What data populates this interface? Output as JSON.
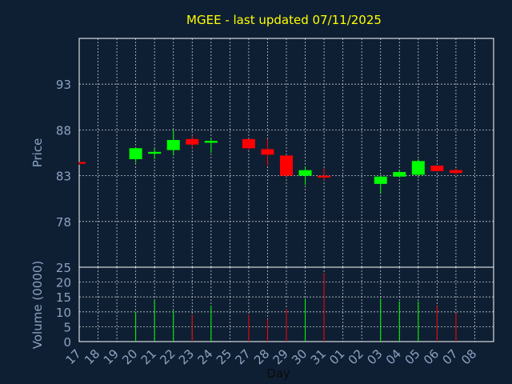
{
  "chart_data": {
    "type": "candlestick",
    "title": "MGEE - last updated 07/11/2025",
    "xlabel": "Day",
    "price_label": "Price",
    "volume_label": "Volume (0000)",
    "categories": [
      "17",
      "18",
      "19",
      "20",
      "21",
      "22",
      "23",
      "24",
      "25",
      "27",
      "28",
      "29",
      "30",
      "31",
      "01",
      "02",
      "03",
      "04",
      "05",
      "06",
      "07",
      "08"
    ],
    "price_ticks": [
      78,
      83,
      88,
      93
    ],
    "price_range": [
      73,
      98
    ],
    "volume_ticks": [
      0,
      5,
      10,
      15,
      20,
      25
    ],
    "volume_range": [
      0,
      25
    ],
    "grid": true,
    "colors": {
      "up": "#00ff00",
      "down": "#ff0000",
      "title": "#ffff00",
      "axis": "#8aa2c2",
      "background": "#0f1f33"
    },
    "candles": [
      {
        "day": "17",
        "open": 84.5,
        "high": 84.5,
        "low": 84.2,
        "close": 84.3,
        "volume": null
      },
      {
        "day": "20",
        "open": 84.8,
        "high": 86.1,
        "low": 84.4,
        "close": 86.0,
        "volume": 10
      },
      {
        "day": "21",
        "open": 85.4,
        "high": 86.0,
        "low": 84.8,
        "close": 85.6,
        "volume": 14
      },
      {
        "day": "22",
        "open": 85.8,
        "high": 88.0,
        "low": 85.2,
        "close": 86.9,
        "volume": 10.5
      },
      {
        "day": "23",
        "open": 87.0,
        "high": 87.4,
        "low": 86.0,
        "close": 86.4,
        "volume": 9
      },
      {
        "day": "24",
        "open": 86.6,
        "high": 87.1,
        "low": 85.5,
        "close": 86.8,
        "volume": 12
      },
      {
        "day": "27",
        "open": 87.0,
        "high": 87.0,
        "low": 85.8,
        "close": 86.0,
        "volume": 9
      },
      {
        "day": "28",
        "open": 85.9,
        "high": 87.0,
        "low": 84.1,
        "close": 85.3,
        "volume": 7.5
      },
      {
        "day": "29",
        "open": 85.2,
        "high": 85.2,
        "low": 82.9,
        "close": 83.0,
        "volume": 11
      },
      {
        "day": "30",
        "open": 83.0,
        "high": 84.0,
        "low": 82.0,
        "close": 83.6,
        "volume": 14.5
      },
      {
        "day": "31",
        "open": 83.0,
        "high": 83.8,
        "low": 82.5,
        "close": 82.8,
        "volume": 23
      },
      {
        "day": "03",
        "open": 82.1,
        "high": 83.0,
        "low": 81.0,
        "close": 82.9,
        "volume": 14.5
      },
      {
        "day": "04",
        "open": 82.9,
        "high": 83.6,
        "low": 82.9,
        "close": 83.4,
        "volume": 13.5
      },
      {
        "day": "05",
        "open": 83.1,
        "high": 84.8,
        "low": 83.0,
        "close": 84.6,
        "volume": 13.5
      },
      {
        "day": "06",
        "open": 84.1,
        "high": 84.1,
        "low": 83.4,
        "close": 83.5,
        "volume": 12
      },
      {
        "day": "07",
        "open": 83.6,
        "high": 83.8,
        "low": 83.1,
        "close": 83.3,
        "volume": 9.5
      }
    ]
  }
}
